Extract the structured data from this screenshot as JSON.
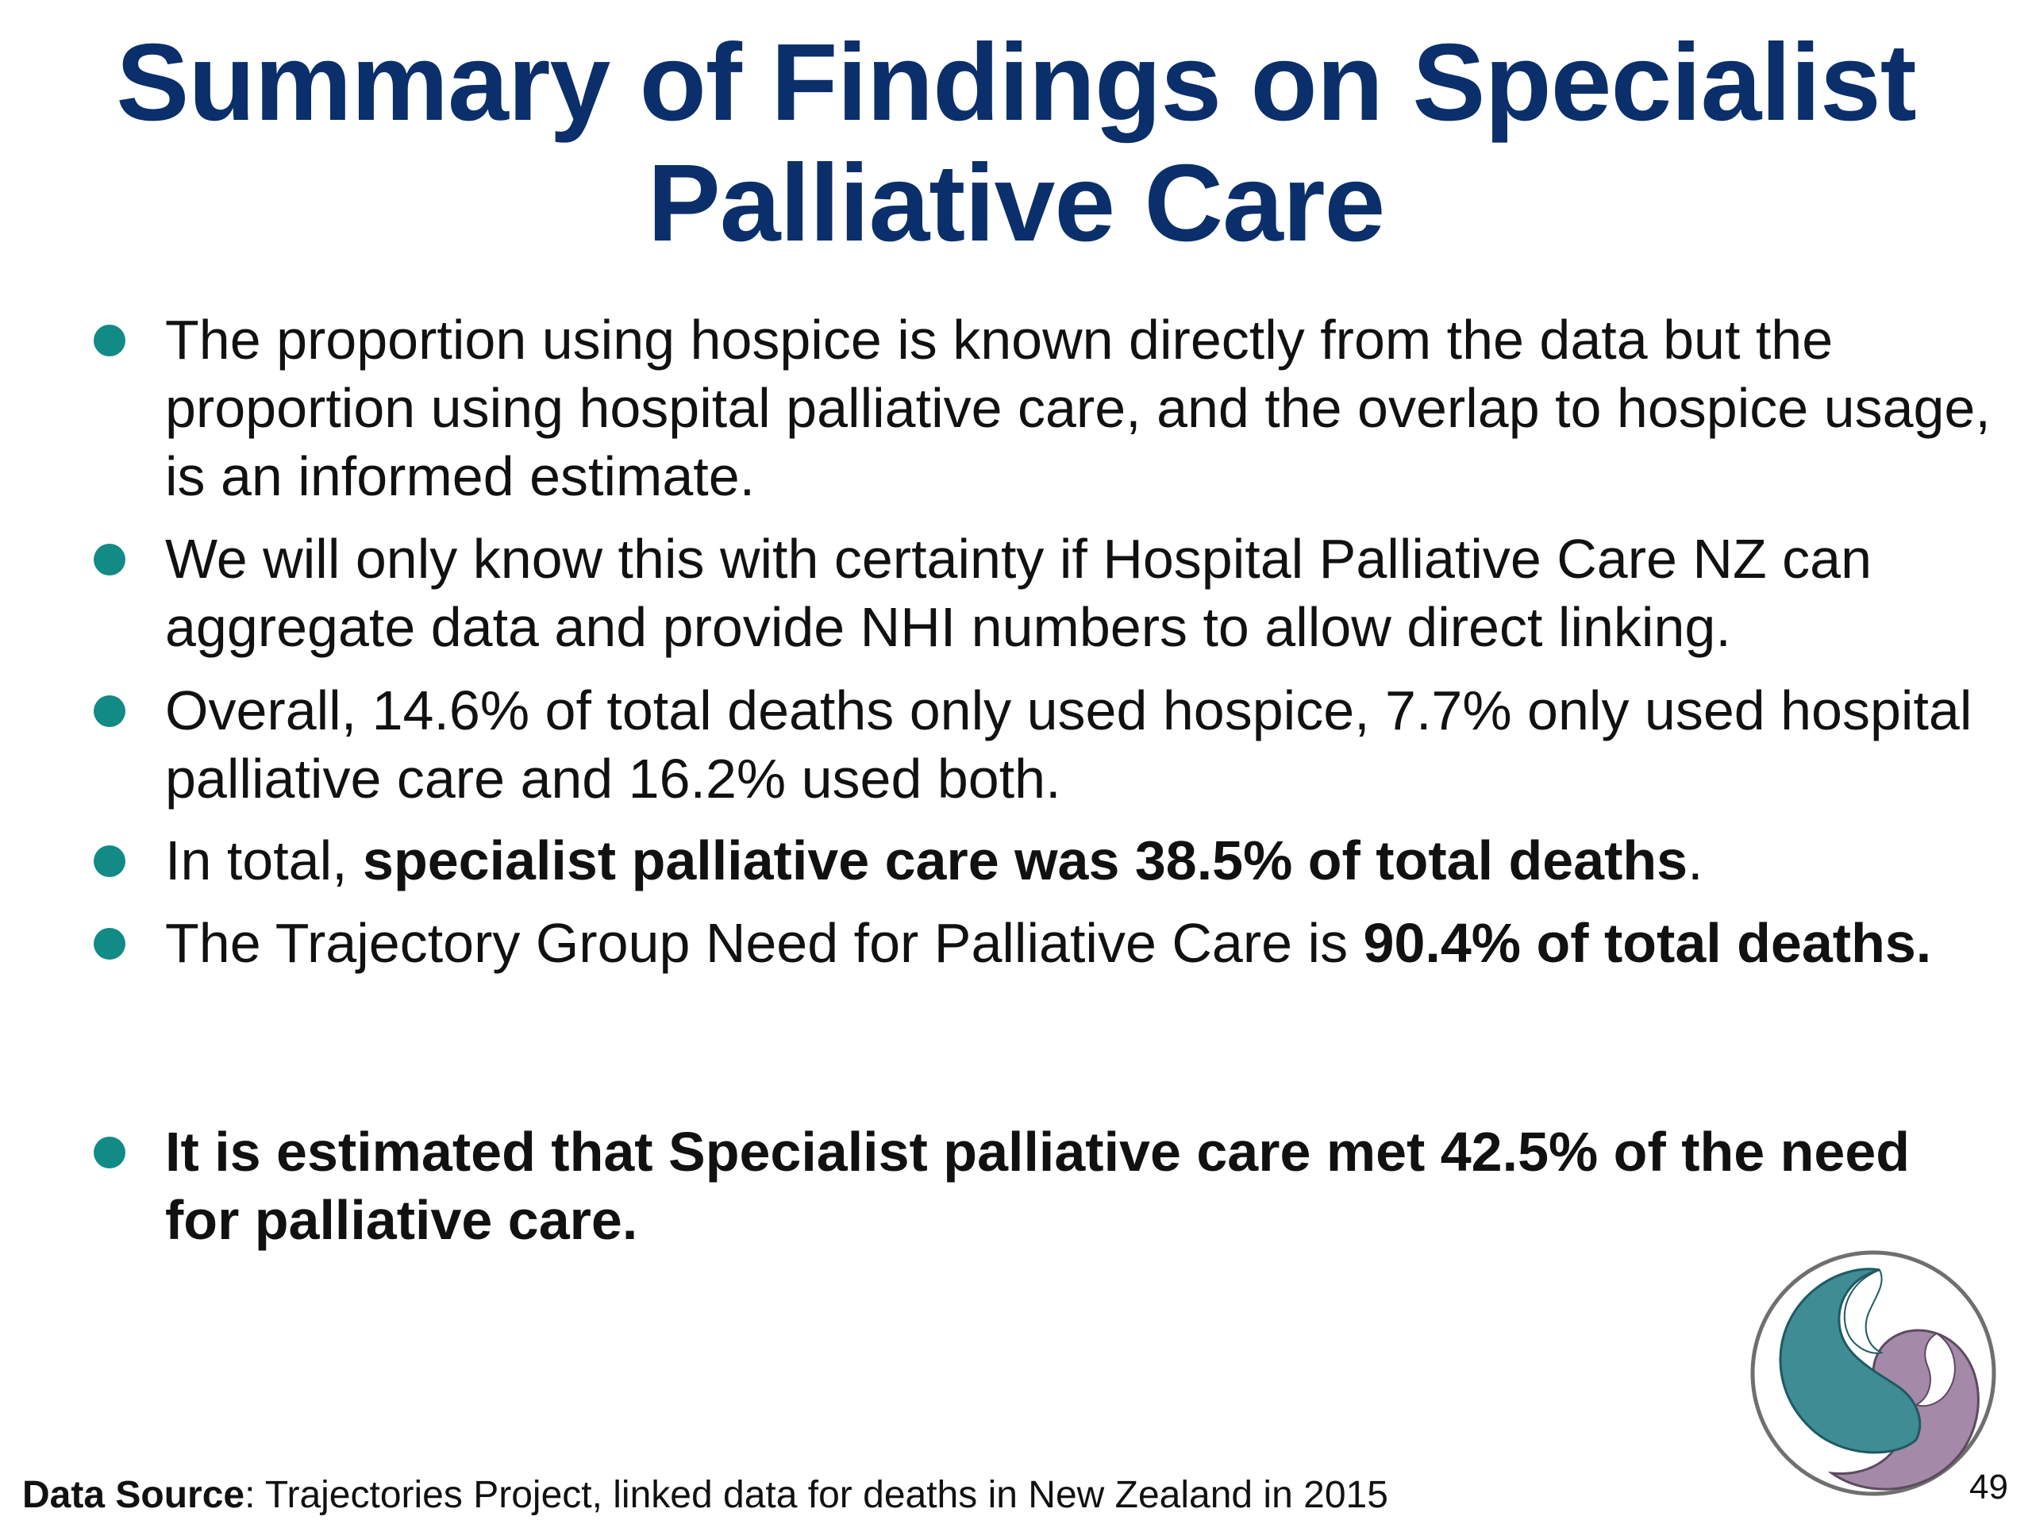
{
  "slide": {
    "title_line1": "Summary of Findings on Specialist",
    "title_line2": "Palliative Care",
    "bullets": [
      {
        "text": "The proportion using hospice is known directly from the data but the proportion using hospital palliative care, and the overlap to hospice usage, is an informed estimate."
      },
      {
        "text": "We will only know this with certainty if Hospital Palliative Care NZ can aggregate data and provide NHI numbers to allow direct linking."
      },
      {
        "text": "Overall, 14.6% of total deaths only used hospice, 7.7% only used hospital palliative care and 16.2% used both."
      },
      {
        "prefix": "In total, ",
        "bold": "specialist palliative care was 38.5% of total deaths",
        "suffix": "."
      },
      {
        "prefix": "The Trajectory Group Need for Palliative Care is ",
        "bold": "90.4% of total deaths."
      },
      {
        "text": "It is estimated that Specialist palliative care met 42.5% of the need for palliative care."
      }
    ],
    "footer_label": "Data Source",
    "footer_text": ": Trajectories Project, linked data for deaths in New Zealand in 2015",
    "page_number": "49"
  },
  "colors": {
    "title": "#0b2f6b",
    "bullet_dot": "#128a85",
    "logo_teal": "#3f8c95",
    "logo_purple": "#a48aa8"
  },
  "icons": {
    "logo": "koru-logo-icon"
  }
}
